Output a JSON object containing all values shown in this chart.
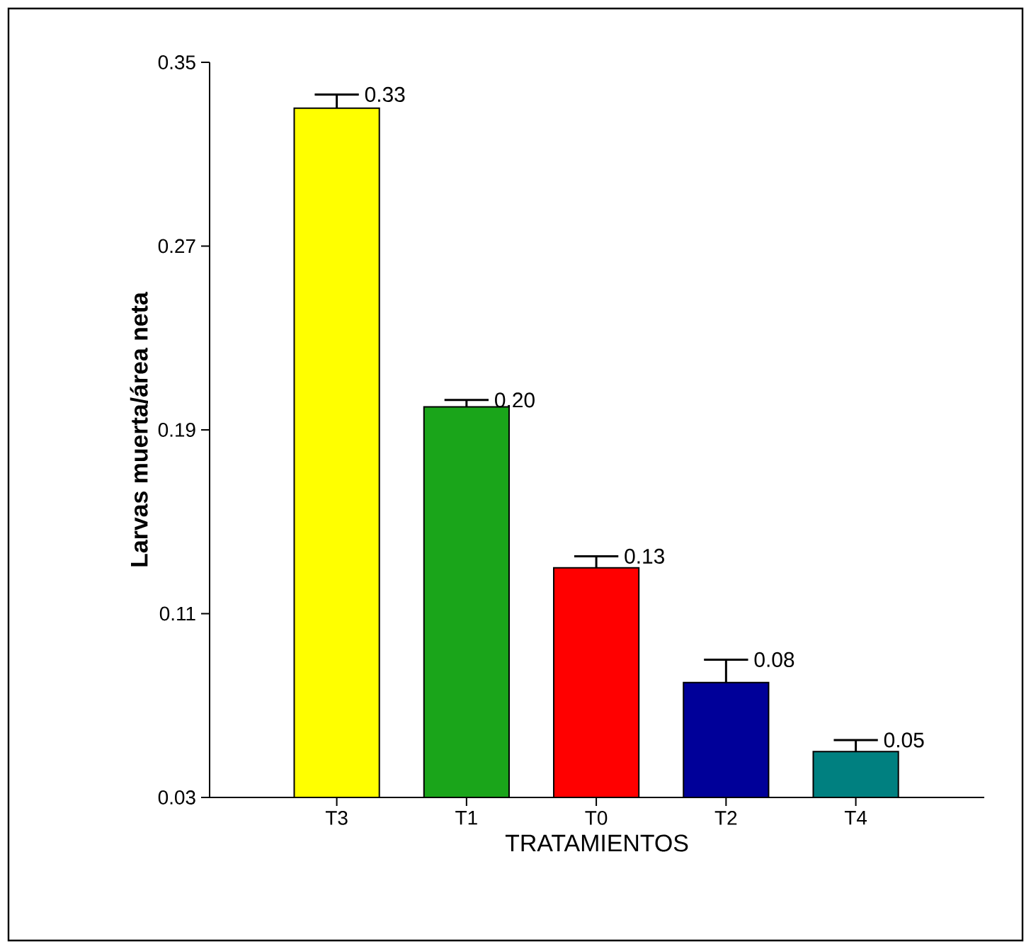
{
  "chart_data": {
    "type": "bar",
    "xlabel": "TRATAMIENTOS",
    "ylabel": "Larvas muerta/área neta",
    "categories": [
      "T3",
      "T1",
      "T0",
      "T2",
      "T4"
    ],
    "values": [
      0.33,
      0.2,
      0.13,
      0.08,
      0.05
    ],
    "errors": [
      [
        0.33,
        0.336
      ],
      [
        0.2,
        0.203
      ],
      [
        0.13,
        0.135
      ],
      [
        0.08,
        0.09
      ],
      [
        0.05,
        0.055
      ]
    ],
    "value_labels": [
      "0.33",
      "0.20",
      "0.13",
      "0.08",
      "0.05"
    ],
    "colors": [
      "#ffff00",
      "#1aa51a",
      "#ff0000",
      "#000099",
      "#008080"
    ],
    "ylim": [
      0.03,
      0.35
    ],
    "yticks": [
      0.03,
      0.11,
      0.19,
      0.27,
      0.35
    ],
    "grid": false
  }
}
